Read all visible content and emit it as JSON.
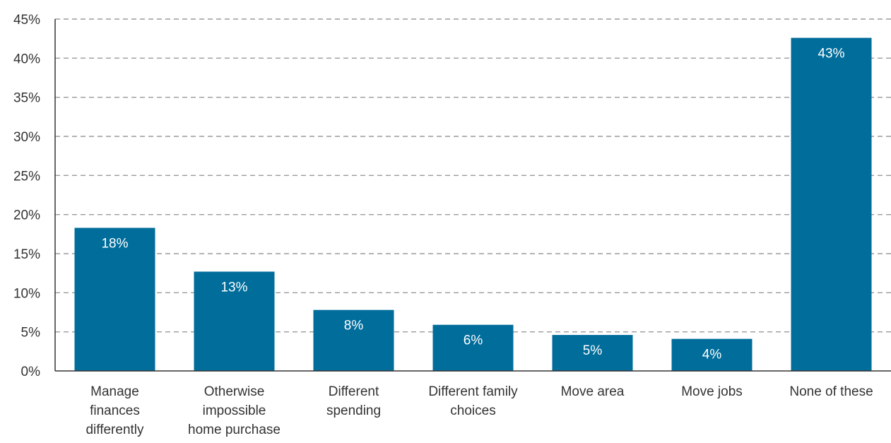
{
  "chart_data": {
    "type": "bar",
    "categories": [
      [
        "Manage",
        "finances",
        "differently"
      ],
      [
        "Otherwise",
        "impossible",
        "home purchase"
      ],
      [
        "Different",
        "spending"
      ],
      [
        "Different family",
        "choices"
      ],
      [
        "Move area"
      ],
      [
        "Move jobs"
      ],
      [
        "None of these"
      ]
    ],
    "values": [
      18.3,
      12.7,
      7.8,
      5.9,
      4.6,
      4.1,
      42.6
    ],
    "data_labels": [
      "18%",
      "13%",
      "8%",
      "6%",
      "5%",
      "4%",
      "43%"
    ],
    "yticks": [
      0,
      5,
      10,
      15,
      20,
      25,
      30,
      35,
      40,
      45
    ],
    "ytick_labels": [
      "0%",
      "5%",
      "10%",
      "15%",
      "20%",
      "25%",
      "30%",
      "35%",
      "40%",
      "45%"
    ],
    "ylim": [
      0,
      45
    ],
    "grid": true,
    "title": "",
    "xlabel": "",
    "ylabel": ""
  },
  "colors": {
    "bar": "#006D9B",
    "grid": "#9a9a9a",
    "axis": "#333333",
    "text": "#333333",
    "bar_label": "#ffffff"
  }
}
